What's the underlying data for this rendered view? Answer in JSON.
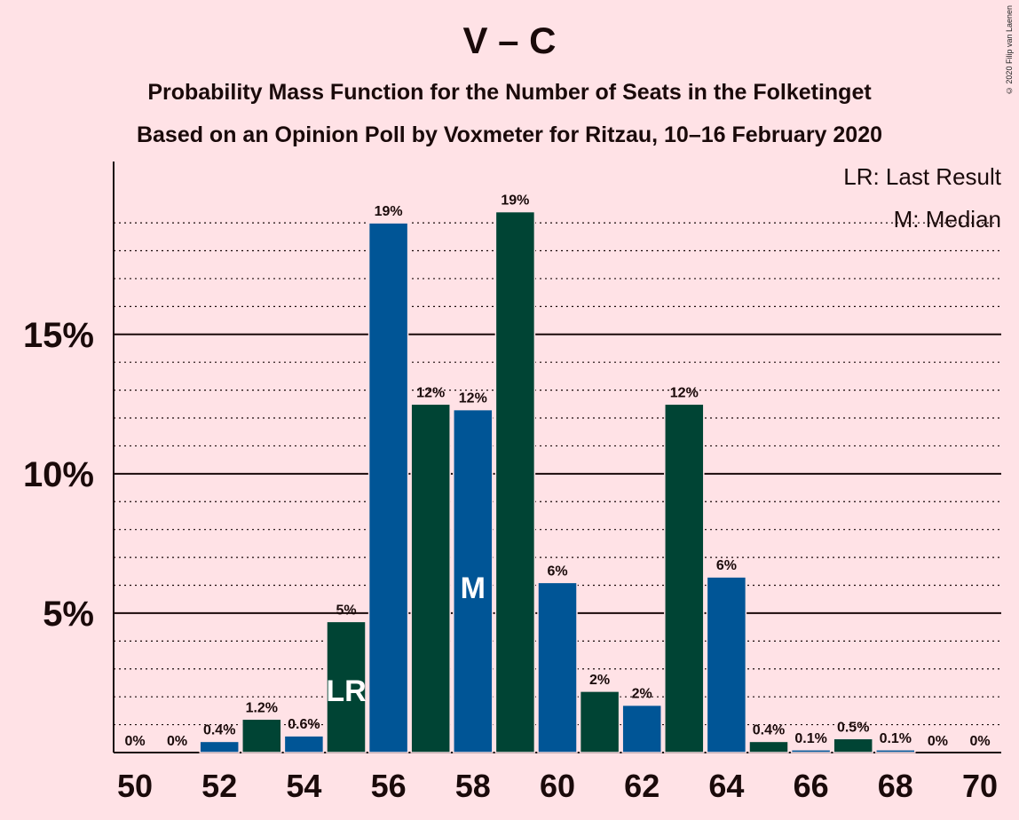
{
  "chart_data": {
    "type": "bar",
    "title": "V – C",
    "subtitle_lines": [
      "Probability Mass Function for the Number of Seats in the Folketinget",
      "Based on an Opinion Poll by Voxmeter for Ritzau, 10–16 February 2020"
    ],
    "copyright": "© 2020 Filip van Laenen",
    "x": [
      50,
      51,
      52,
      53,
      54,
      55,
      56,
      57,
      58,
      59,
      60,
      61,
      62,
      63,
      64,
      65,
      66,
      67,
      68,
      69,
      70
    ],
    "values": [
      0,
      0,
      0.4,
      1.2,
      0.6,
      4.7,
      19.0,
      12.5,
      12.3,
      19.4,
      6.1,
      2.2,
      1.7,
      12.5,
      6.3,
      0.4,
      0.1,
      0.5,
      0.1,
      0,
      0
    ],
    "data_labels": [
      "0%",
      "0%",
      "0.4%",
      "1.2%",
      "0.6%",
      "5%",
      "19%",
      "12%",
      "12%",
      "19%",
      "6%",
      "2%",
      "2%",
      "12%",
      "6%",
      "0.4%",
      "0.1%",
      "0.5%",
      "0.1%",
      "0%",
      "0%"
    ],
    "x_tick_labels": [
      "50",
      "52",
      "54",
      "56",
      "58",
      "60",
      "62",
      "64",
      "66",
      "68",
      "70"
    ],
    "y_tick_labels": [
      "5%",
      "10%",
      "15%"
    ],
    "y_major_ticks": [
      5,
      10,
      15
    ],
    "ylim": [
      0,
      21.2
    ],
    "last_result_seat": 55,
    "median_seat": 58,
    "markers": {
      "last_result": "LR",
      "median": "M"
    },
    "legend": {
      "last_result": "LR: Last Result",
      "median": "M: Median"
    },
    "colors": {
      "background": "#ffe2e6",
      "blue": "#005596",
      "green": "#004434",
      "text": "#1a0a0a"
    }
  }
}
